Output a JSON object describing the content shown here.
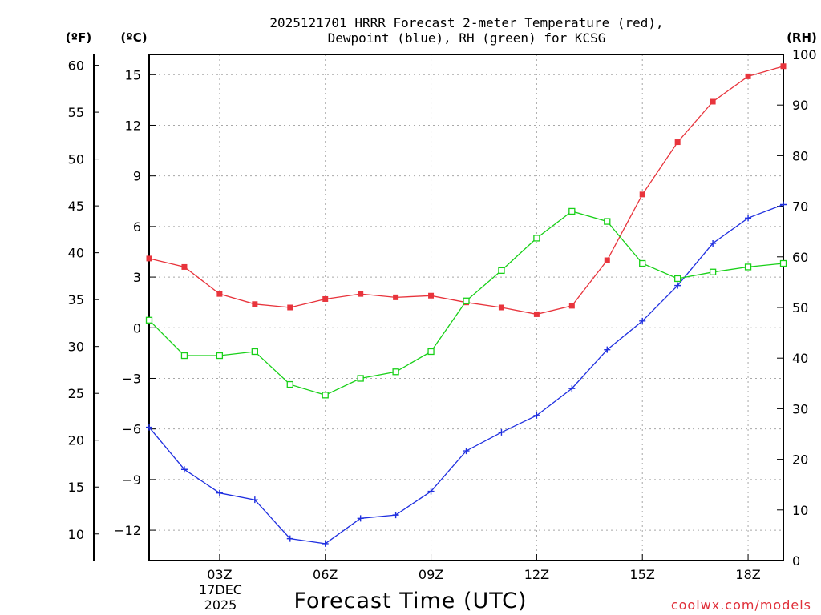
{
  "chart_data": {
    "type": "line",
    "title_lines": [
      "2025121701 HRRR Forecast 2-meter Temperature (red),",
      "Dewpoint (blue), RH (green) for KCSG"
    ],
    "units": {
      "fahrenheit": "(ºF)",
      "celsius": "(ºC)",
      "rh": "(RH)"
    },
    "xlabel": "Forecast Time (UTC)",
    "date_label": [
      "17DEC",
      "2025"
    ],
    "credit": "coolwx.com/models",
    "x_hours": [
      1,
      2,
      3,
      4,
      5,
      6,
      7,
      8,
      9,
      10,
      11,
      12,
      13,
      14,
      15,
      16,
      17,
      18,
      19
    ],
    "xlim": [
      1,
      19
    ],
    "x_ticks": [
      {
        "hour": 3,
        "label": "03Z"
      },
      {
        "hour": 6,
        "label": "06Z"
      },
      {
        "hour": 9,
        "label": "09Z"
      },
      {
        "hour": 12,
        "label": "12Z"
      },
      {
        "hour": 15,
        "label": "15Z"
      },
      {
        "hour": 18,
        "label": "18Z"
      }
    ],
    "celsius_axis": {
      "ylim": [
        -13.8,
        16.2
      ],
      "ticks": [
        -12,
        -9,
        -6,
        -3,
        0,
        3,
        6,
        9,
        12,
        15
      ]
    },
    "fahrenheit_axis": {
      "ticks": [
        10,
        15,
        20,
        25,
        30,
        35,
        40,
        45,
        50,
        55,
        60
      ]
    },
    "rh_axis": {
      "ylim": [
        0,
        100
      ],
      "ticks": [
        0,
        10,
        20,
        30,
        40,
        50,
        60,
        70,
        80,
        90,
        100
      ]
    },
    "series": [
      {
        "name": "Temperature",
        "axis": "celsius",
        "color": "#e8343c",
        "marker": "filled-square",
        "values": [
          4.1,
          3.6,
          2.0,
          1.4,
          1.2,
          1.7,
          2.0,
          1.8,
          1.9,
          1.5,
          1.2,
          0.8,
          1.3,
          4.0,
          7.9,
          11.0,
          13.4,
          14.9,
          15.5
        ]
      },
      {
        "name": "Dewpoint",
        "axis": "celsius",
        "color": "#2030e0",
        "marker": "plus",
        "values": [
          -5.9,
          -8.4,
          -9.8,
          -10.2,
          -12.5,
          -12.8,
          -11.3,
          -11.1,
          -9.7,
          -7.3,
          -6.2,
          -5.2,
          -3.6,
          -1.3,
          0.4,
          2.5,
          5.0,
          6.5,
          7.3
        ]
      },
      {
        "name": "Relative Humidity",
        "axis": "rh",
        "color": "#18d018",
        "marker": "open-square",
        "values": [
          47.5,
          40.5,
          40.5,
          41.3,
          34.8,
          32.7,
          36.0,
          37.3,
          41.3,
          51.3,
          57.3,
          63.7,
          69.0,
          67.0,
          58.7,
          55.7,
          57.0,
          58.0,
          58.7
        ]
      }
    ]
  }
}
